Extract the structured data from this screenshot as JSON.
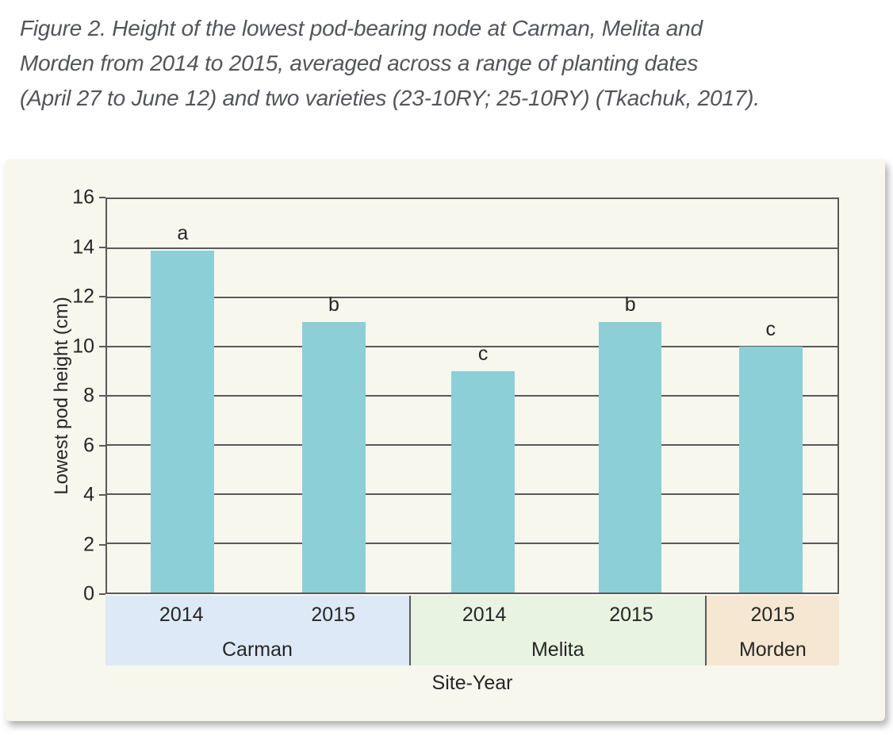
{
  "caption": {
    "lines": [
      "Figure 2. Height of the lowest pod-bearing node at Carman, Melita and",
      "Morden from 2014 to 2015, averaged across a range of planting dates",
      "(April 27 to June 12) and two varieties (23-10RY; 25-10RY) (Tkachuk, 2017)."
    ]
  },
  "chart_data": {
    "type": "bar",
    "title": "",
    "xlabel": "Site-Year",
    "ylabel": "Lowest pod height (cm)",
    "ylim": [
      0,
      16
    ],
    "ytick_step": 2,
    "yticks": [
      0,
      2,
      4,
      6,
      8,
      10,
      12,
      14,
      16
    ],
    "grid": true,
    "legend": "none",
    "categories": [
      "Carman 2014",
      "Carman 2015",
      "Melita 2014",
      "Melita 2015",
      "Morden 2015"
    ],
    "values": [
      13.9,
      11.0,
      9.0,
      11.0,
      10.0
    ],
    "significance_letters": [
      "a",
      "b",
      "c",
      "b",
      "c"
    ],
    "groups": [
      {
        "site": "Carman",
        "band_color": "#dde9f7",
        "width_pct": 41.4,
        "bars": [
          {
            "year": "2014",
            "value": 13.9,
            "sig_letter": "a"
          },
          {
            "year": "2015",
            "value": 11.0,
            "sig_letter": "b"
          }
        ]
      },
      {
        "site": "Melita",
        "band_color": "#e8f3e2",
        "width_pct": 40.3,
        "bars": [
          {
            "year": "2014",
            "value": 9.0,
            "sig_letter": "c"
          },
          {
            "year": "2015",
            "value": 11.0,
            "sig_letter": "b"
          }
        ]
      },
      {
        "site": "Morden",
        "band_color": "#f6e7d2",
        "width_pct": 18.3,
        "bars": [
          {
            "year": "2015",
            "value": 10.0,
            "sig_letter": "c"
          }
        ]
      }
    ]
  },
  "style": {
    "page_bg": "#ffffff",
    "panel_bg": "#f8f7ee",
    "bar_color": "#8ccfd6",
    "grid_color": "#59595b",
    "text_color": "#262626",
    "caption_color": "#53555a",
    "bar_width_pct": 8.65
  }
}
